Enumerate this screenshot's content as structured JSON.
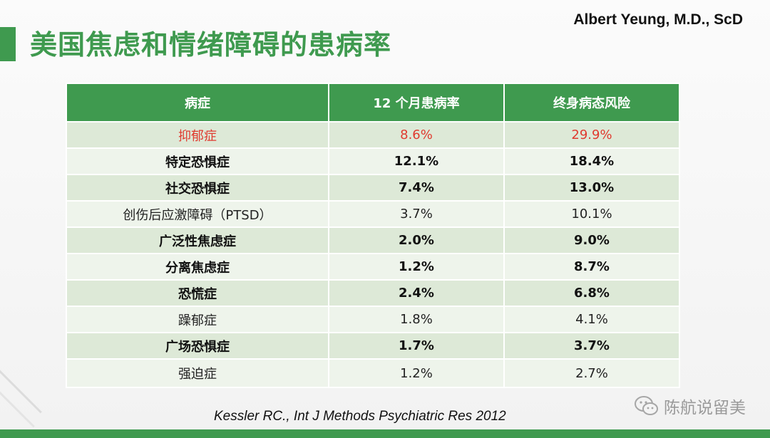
{
  "slide": {
    "title": "美国焦虑和情绪障碍的患病率",
    "author": "Albert Yeung, M.D., ScD",
    "citation": "Kessler RC., Int J Methods Psychiatric Res 2012",
    "watermark": "陈航说留美",
    "accent_color": "#3f9a4f",
    "highlight_color": "#e03a2f"
  },
  "table": {
    "headers": [
      "病症",
      "12 个月患病率",
      "终身病态风险"
    ],
    "rows": [
      {
        "condition": "抑郁症",
        "month12": "8.6%",
        "lifetime": "29.9%"
      },
      {
        "condition": "特定恐惧症",
        "month12": "12.1%",
        "lifetime": "18.4%"
      },
      {
        "condition": "社交恐惧症",
        "month12": "7.4%",
        "lifetime": "13.0%"
      },
      {
        "condition": "创伤后应激障碍（PTSD）",
        "month12": "3.7%",
        "lifetime": "10.1%"
      },
      {
        "condition": "广泛性焦虑症",
        "month12": "2.0%",
        "lifetime": "9.0%"
      },
      {
        "condition": "分离焦虑症",
        "month12": "1.2%",
        "lifetime": "8.7%"
      },
      {
        "condition": "恐慌症",
        "month12": "2.4%",
        "lifetime": "6.8%"
      },
      {
        "condition": "躁郁症",
        "month12": "1.8%",
        "lifetime": "4.1%"
      },
      {
        "condition": "广场恐惧症",
        "month12": "1.7%",
        "lifetime": "3.7%"
      },
      {
        "condition": "强迫症",
        "month12": "1.2%",
        "lifetime": "2.7%"
      }
    ]
  }
}
